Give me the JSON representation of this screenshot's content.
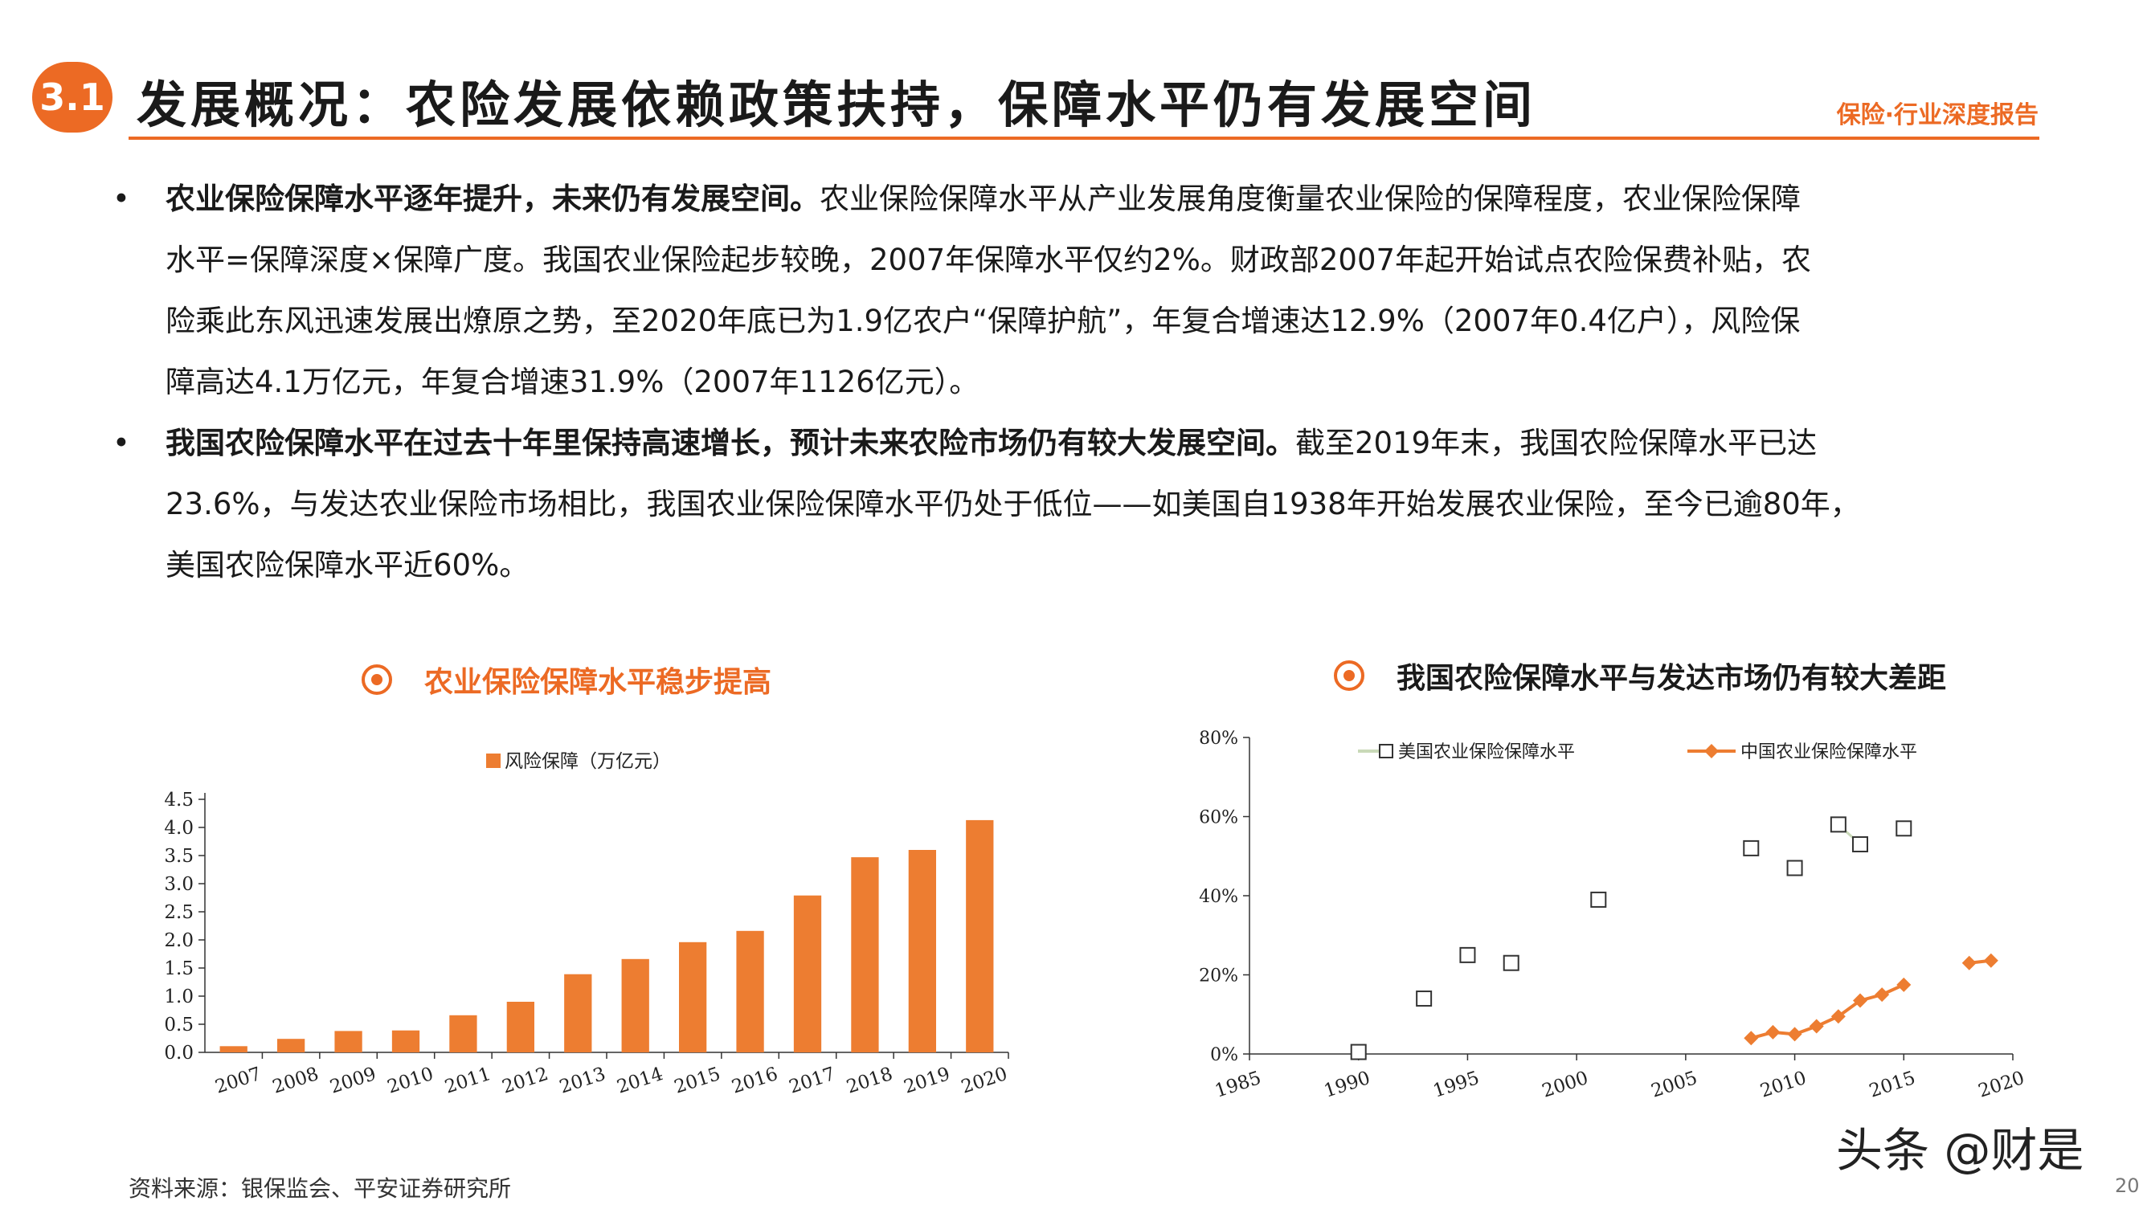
{
  "header": {
    "section_number": "3.1",
    "title": "发展概况：农险发展依赖政策扶持，保障水平仍有发展空间",
    "tag": "保险·行业深度报告"
  },
  "bullets": [
    {
      "lead": "农业保险保障水平逐年提升，未来仍有发展空间。",
      "lines": [
        "农业保险保障水平从产业发展角度衡量农业保险的保障程度，农业保险保障",
        "水平=保障深度×保障广度。我国农业保险起步较晚，2007年保障水平仅约2%。财政部2007年起开始试点农险保费补贴，农",
        "险乘此东风迅速发展出燎原之势，至2020年底已为1.9亿农户“保障护航”，年复合增速达12.9%（2007年0.4亿户），风险保",
        "障高达4.1万亿元，年复合增速31.9%（2007年1126亿元）。"
      ]
    },
    {
      "lead": "我国农险保障水平在过去十年里保持高速增长，预计未来农险市场仍有较大发展空间。",
      "lines": [
        "截至2019年末，我国农险保障水平已达",
        "23.6%，与发达农业保险市场相比，我国农业保险保障水平仍处于低位——如美国自1938年开始发展农业保险，至今已逾80年，",
        "美国农险保障水平近60%。"
      ]
    }
  ],
  "chart_left": {
    "title": "农业保险保障水平稳步提高"
  },
  "chart_right": {
    "title": "我国农险保障水平与发达市场仍有较大差距"
  },
  "chart_data": [
    {
      "type": "bar",
      "legend": [
        "风险保障（万亿元）"
      ],
      "legend_position": "top",
      "categories": [
        "2007",
        "2008",
        "2009",
        "2010",
        "2011",
        "2012",
        "2013",
        "2014",
        "2015",
        "2016",
        "2017",
        "2018",
        "2019",
        "2020"
      ],
      "series": [
        {
          "name": "风险保障（万亿元）",
          "color": "#ed7d31",
          "values": [
            0.11,
            0.24,
            0.38,
            0.39,
            0.66,
            0.9,
            1.39,
            1.66,
            1.96,
            2.16,
            2.79,
            3.47,
            3.6,
            4.13
          ]
        }
      ],
      "yticks": [
        "0.0",
        "0.5",
        "1.0",
        "1.5",
        "2.0",
        "2.5",
        "3.0",
        "3.5",
        "4.0",
        "4.5"
      ],
      "ylim": [
        0,
        4.5
      ]
    },
    {
      "type": "scatter",
      "legend_position": "top",
      "xlim": [
        1985,
        2020
      ],
      "ylim": [
        0,
        80
      ],
      "xticks": [
        "1985",
        "1990",
        "1995",
        "2000",
        "2005",
        "2010",
        "2015",
        "2020"
      ],
      "yticks": [
        "0%",
        "20%",
        "40%",
        "60%",
        "80%"
      ],
      "series": [
        {
          "name": "美国农业保险保障水平",
          "marker": "square",
          "color": "#7f7f7f",
          "x": [
            1990,
            1993,
            1995,
            1997,
            2001,
            2008,
            2010,
            2012,
            2013,
            2015
          ],
          "y": [
            0.5,
            14,
            25,
            23,
            39,
            52,
            47,
            58,
            53,
            57
          ]
        },
        {
          "name": "中国农业保险保障水平",
          "marker": "diamond",
          "color": "#ed7d31",
          "x": [
            2008,
            2009,
            2010,
            2011,
            2012,
            2013,
            2014,
            2015,
            2018,
            2019
          ],
          "y": [
            4,
            5.5,
            5,
            7,
            9.5,
            13.5,
            15,
            17.5,
            23,
            23.6
          ]
        }
      ]
    }
  ],
  "footer": {
    "source": "资料来源：银保监会、平安证券研究所",
    "watermark": "头条 @财是",
    "page_number": "20"
  }
}
